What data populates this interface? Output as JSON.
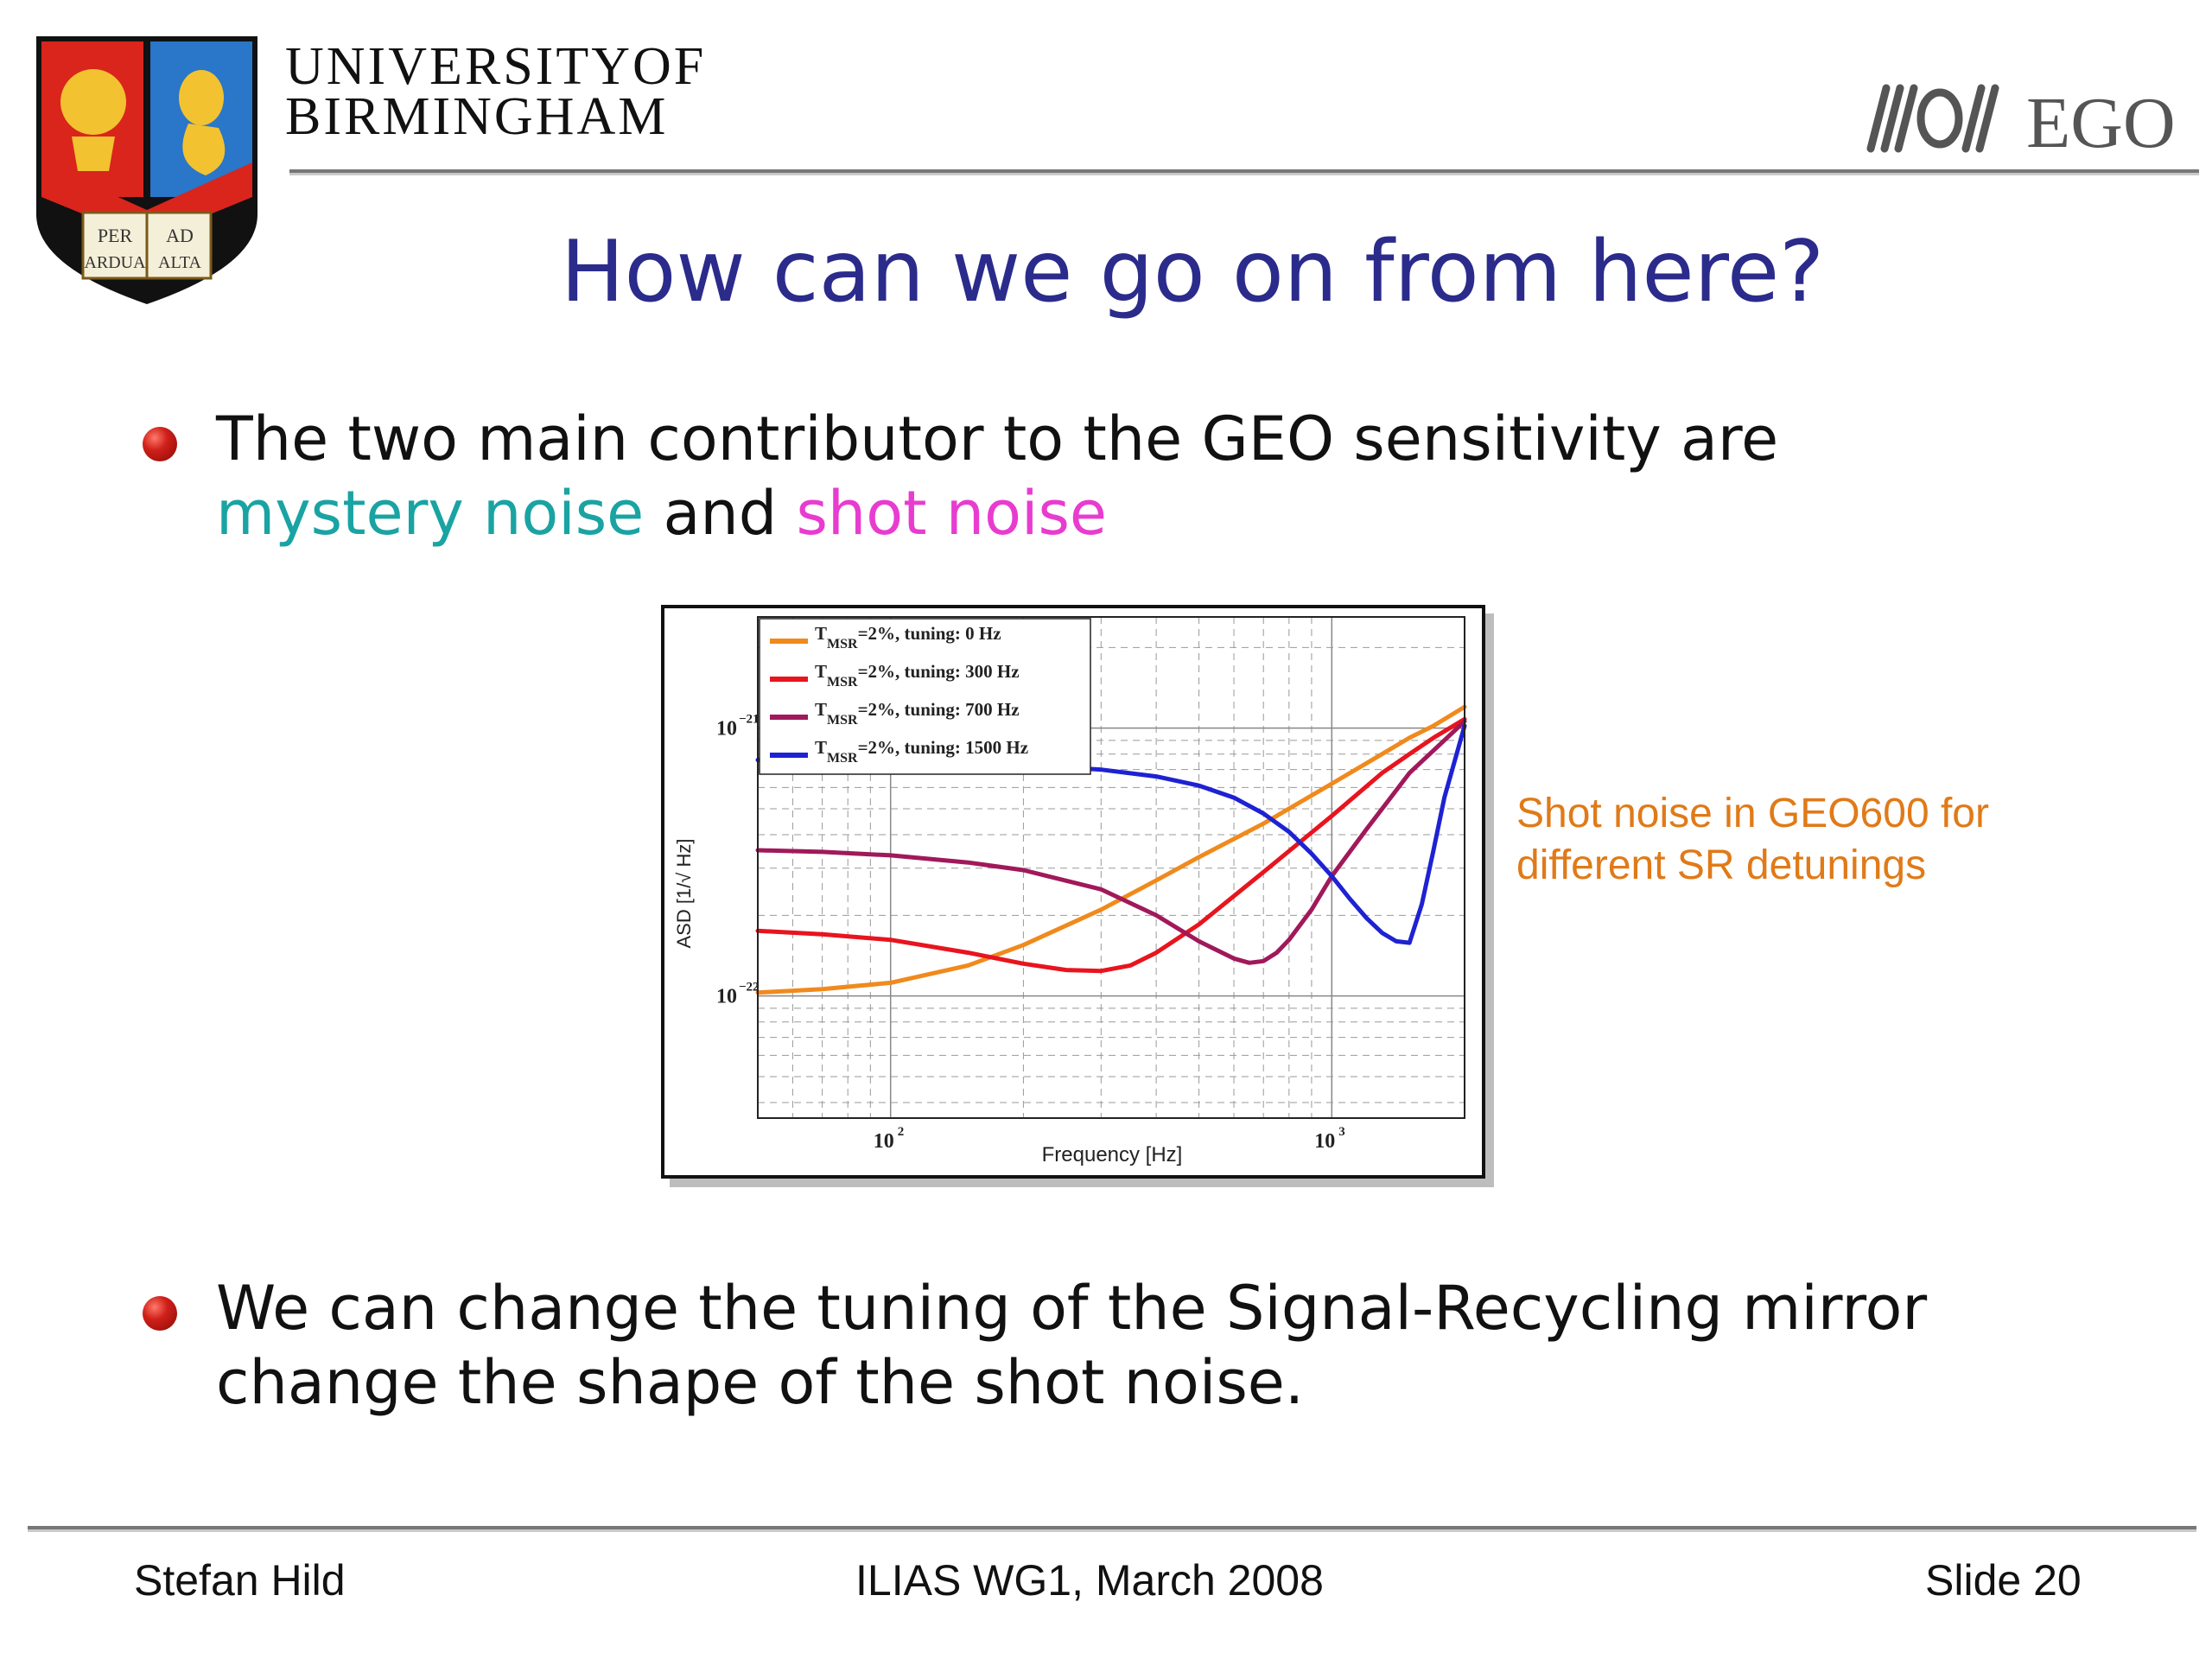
{
  "header": {
    "university_line1": "UNIVERSITYOF",
    "university_line2": "BIRMINGHAM",
    "crest_motto": [
      "PER",
      "AD",
      "ARDUA",
      "ALTA"
    ],
    "partner_logo": "EGO"
  },
  "title": "How can we go on from here?",
  "bullets": [
    {
      "line1": "The two main contributor to the GEO sensitivity are",
      "highlight1": "mystery noise",
      "connector": " and ",
      "highlight2": "shot noise"
    },
    {
      "line1": "We can change the tuning of the Signal-Recycling mirror",
      "line2": "change the shape of the shot noise."
    }
  ],
  "caption": {
    "line1": "Shot noise in GEO600 for",
    "line2": "different SR detunings"
  },
  "colors": {
    "title": "#2b2b8c",
    "mystery_noise": "#1aa3a3",
    "shot_noise": "#e83cd0",
    "caption": "#e07a18"
  },
  "chart_data": {
    "type": "line",
    "xlabel": "Frequency [Hz]",
    "ylabel": "ASD [1/√ Hz]",
    "x_scale": "log",
    "y_scale": "log",
    "xlim": [
      50,
      2000
    ],
    "ylim": [
      3.5e-23,
      2.6e-21
    ],
    "x_ticks": [
      {
        "value": 100,
        "base": "10",
        "exp": "2"
      },
      {
        "value": 1000,
        "base": "10",
        "exp": "3"
      }
    ],
    "y_ticks": [
      {
        "value": 1e-21,
        "base": "10",
        "exp": "−21"
      },
      {
        "value": 1e-22,
        "base": "10",
        "exp": "−22"
      }
    ],
    "grid": true,
    "legend_position": "top-left",
    "series": [
      {
        "name": "T_MSR=2%, tuning: 0 Hz",
        "legend_sub": "MSR",
        "legend_rest": "=2%, tuning: 0 Hz",
        "color": "#f08a1c",
        "x": [
          50,
          70,
          100,
          150,
          200,
          300,
          400,
          500,
          700,
          1000,
          1300,
          1500,
          1700,
          2000
        ],
        "y": [
          1.03e-22,
          1.06e-22,
          1.12e-22,
          1.3e-22,
          1.55e-22,
          2.1e-22,
          2.7e-22,
          3.3e-22,
          4.4e-22,
          6.2e-22,
          8e-22,
          9.2e-22,
          1.02e-21,
          1.2e-21
        ]
      },
      {
        "name": "T_MSR=2%, tuning: 300 Hz",
        "legend_sub": "MSR",
        "legend_rest": "=2%, tuning: 300 Hz",
        "color": "#e8141e",
        "x": [
          50,
          70,
          100,
          150,
          200,
          250,
          300,
          350,
          400,
          500,
          700,
          1000,
          1300,
          1500,
          1700,
          2000
        ],
        "y": [
          1.75e-22,
          1.7e-22,
          1.62e-22,
          1.45e-22,
          1.32e-22,
          1.25e-22,
          1.24e-22,
          1.3e-22,
          1.45e-22,
          1.85e-22,
          2.9e-22,
          4.7e-22,
          6.8e-22,
          8e-22,
          9.2e-22,
          1.08e-21
        ]
      },
      {
        "name": "T_MSR=2%, tuning: 700 Hz",
        "legend_sub": "MSR",
        "legend_rest": "=2%, tuning: 700 Hz",
        "color": "#a0195a",
        "x": [
          50,
          70,
          100,
          150,
          200,
          300,
          400,
          500,
          600,
          650,
          700,
          750,
          800,
          900,
          1000,
          1200,
          1500,
          2000
        ],
        "y": [
          3.5e-22,
          3.45e-22,
          3.35e-22,
          3.15e-22,
          2.95e-22,
          2.5e-22,
          2e-22,
          1.6e-22,
          1.38e-22,
          1.33e-22,
          1.35e-22,
          1.45e-22,
          1.62e-22,
          2.1e-22,
          2.8e-22,
          4.2e-22,
          6.8e-22,
          1.06e-21
        ]
      },
      {
        "name": "T_MSR=2%, tuning: 1500 Hz",
        "legend_sub": "MSR",
        "legend_rest": "=2%, tuning: 1500 Hz",
        "color": "#1e22d2",
        "x": [
          50,
          100,
          200,
          300,
          400,
          500,
          600,
          700,
          800,
          900,
          1000,
          1100,
          1200,
          1300,
          1400,
          1500,
          1600,
          1700,
          1800,
          2000
        ],
        "y": [
          7.6e-22,
          7.5e-22,
          7.3e-22,
          7e-22,
          6.6e-22,
          6.1e-22,
          5.5e-22,
          4.8e-22,
          4.1e-22,
          3.4e-22,
          2.8e-22,
          2.3e-22,
          1.95e-22,
          1.72e-22,
          1.6e-22,
          1.58e-22,
          2.2e-22,
          3.5e-22,
          5.5e-22,
          1.02e-21
        ]
      }
    ]
  },
  "footer": {
    "author": "Stefan Hild",
    "event": "ILIAS WG1, March 2008",
    "slide": "Slide 20"
  }
}
